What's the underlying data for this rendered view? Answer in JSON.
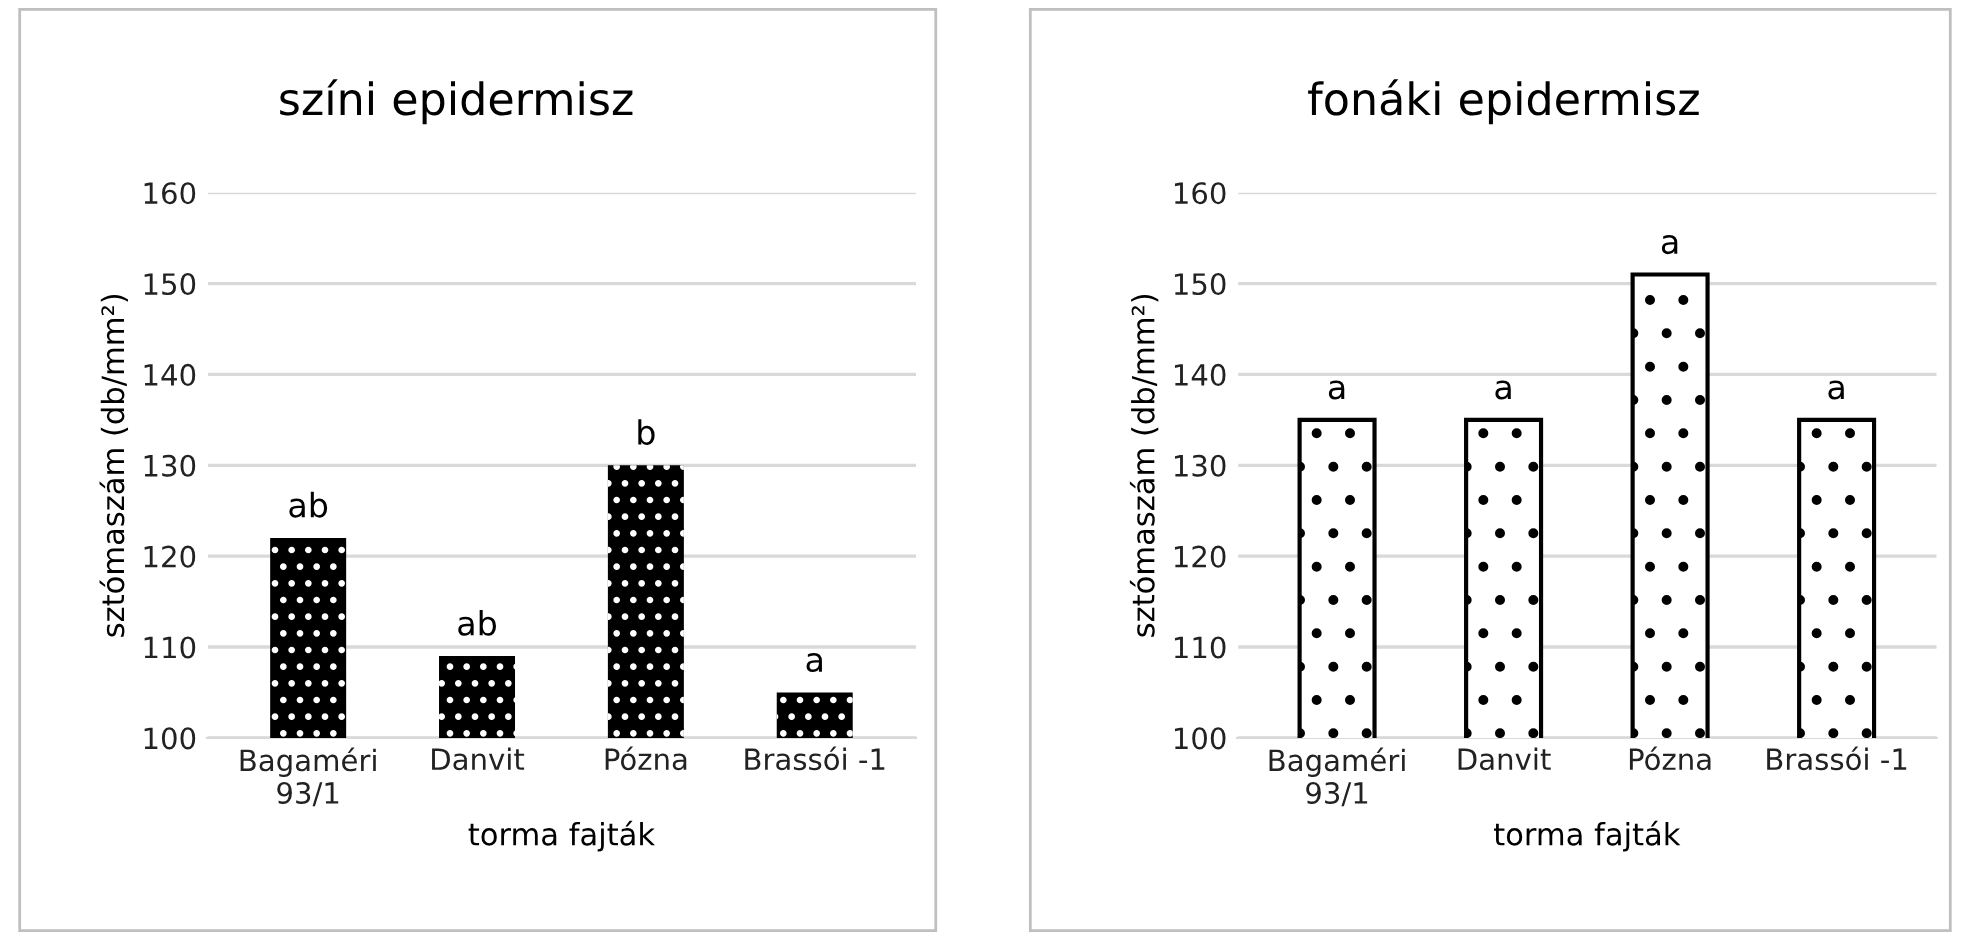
{
  "chart_data": [
    {
      "type": "bar",
      "title": "színi epidermisz",
      "xlabel": "torma fajták",
      "ylabel": "sztómaszám (db/mm²)",
      "categories": [
        "Bagaméri\n93/1",
        "Danvit",
        "Pózna",
        "Brassói -1"
      ],
      "series": [
        {
          "color": "#000000",
          "values": [
            122,
            109,
            130,
            105
          ]
        }
      ],
      "ylim": [
        100,
        160
      ],
      "yticks": [
        100,
        110,
        120,
        130,
        140,
        150,
        160
      ],
      "grid": "y",
      "legend": false,
      "annotations": [
        {
          "text": "ab",
          "x": "Bagaméri\n93/1",
          "y": 122
        },
        {
          "text": "ab",
          "x": "Danvit",
          "y": 109
        },
        {
          "text": "b",
          "x": "Pózna",
          "y": 130
        },
        {
          "text": "a",
          "x": "Brassói -1",
          "y": 105
        }
      ]
    },
    {
      "type": "bar",
      "title": "fonáki epidermisz",
      "xlabel": "torma fajták",
      "ylabel": "sztómaszám (db/mm²)",
      "categories": [
        "Bagaméri\n93/1",
        "Danvit",
        "Pózna",
        "Brassói -1"
      ],
      "series": [
        {
          "color": "#ffffff",
          "values": [
            135,
            135,
            151,
            135
          ]
        }
      ],
      "ylim": [
        100,
        160
      ],
      "yticks": [
        100,
        110,
        120,
        130,
        140,
        150,
        160
      ],
      "grid": "y",
      "legend": false,
      "annotations": [
        {
          "text": "a",
          "x": "Bagaméri\n93/1",
          "y": 135
        },
        {
          "text": "a",
          "x": "Danvit",
          "y": 135
        },
        {
          "text": "a",
          "x": "Pózna",
          "y": 151
        },
        {
          "text": "a",
          "x": "Brassói -1",
          "y": 135
        }
      ]
    }
  ]
}
